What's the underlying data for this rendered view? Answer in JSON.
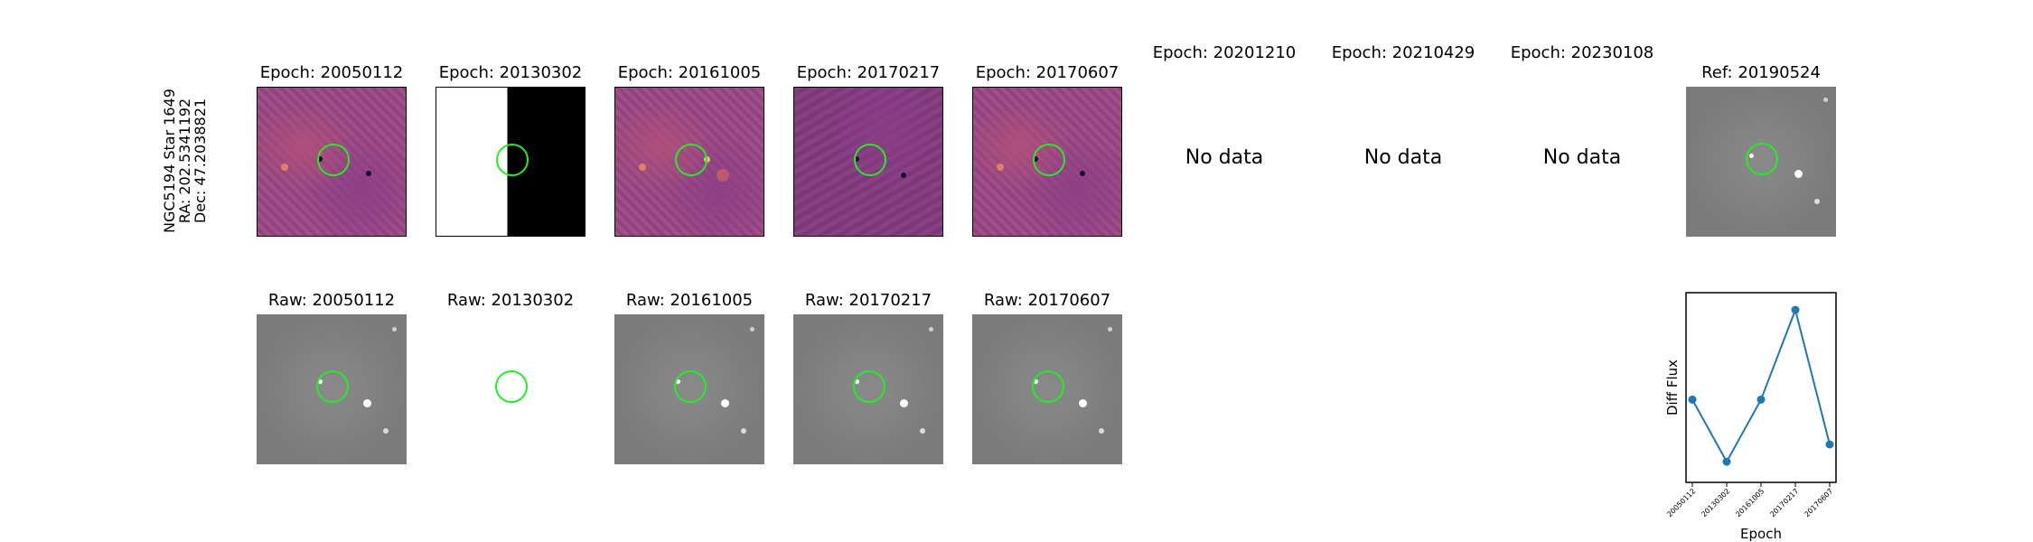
{
  "target": {
    "label_line1": "NGC5194 Star 1649",
    "label_line2": "RA: 202.5341192",
    "label_line3": "Dec: 47.2038821"
  },
  "top_row": [
    {
      "title": "Epoch: 20050112",
      "state": "diff"
    },
    {
      "title": "Epoch: 20130302",
      "state": "split"
    },
    {
      "title": "Epoch: 20161005",
      "state": "diff"
    },
    {
      "title": "Epoch: 20170217",
      "state": "diff"
    },
    {
      "title": "Epoch: 20170607",
      "state": "diff"
    },
    {
      "title": "Epoch: 20201210",
      "state": "nodata",
      "message": "No data"
    },
    {
      "title": "Epoch: 20210429",
      "state": "nodata",
      "message": "No data"
    },
    {
      "title": "Epoch: 20230108",
      "state": "nodata",
      "message": "No data"
    },
    {
      "title": "Ref: 20190524",
      "state": "gray"
    }
  ],
  "bottom_row": [
    {
      "title": "Raw: 20050112"
    },
    {
      "title": "Raw: 20130302"
    },
    {
      "title": "Raw: 20161005"
    },
    {
      "title": "Raw: 20170217"
    },
    {
      "title": "Raw: 20170607"
    }
  ],
  "colors": {
    "marker_circle": "#22ee22",
    "series": "#1f77b4",
    "heat_base": "#9a4683",
    "raw_gray": "#7b7b7b"
  },
  "chart_data": {
    "type": "line",
    "xlabel": "Epoch",
    "ylabel": "Diff Flux",
    "categories": [
      "20050112",
      "20130302",
      "20161005",
      "20170217",
      "20170607"
    ],
    "values": [
      0.48,
      0.12,
      0.48,
      1.0,
      0.22
    ],
    "ylim": [
      0.0,
      1.1
    ],
    "yticks_shown": false,
    "grid": false,
    "marker": "circle"
  }
}
